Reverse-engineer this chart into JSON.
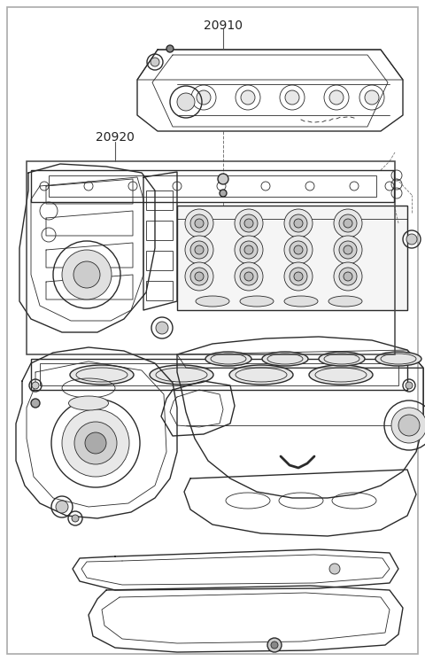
{
  "background_color": "#ffffff",
  "border_color": "#bbbbbb",
  "line_color": "#2a2a2a",
  "label_20910": "20910",
  "label_20920": "20920",
  "figsize": [
    4.8,
    7.46
  ],
  "dpi": 100,
  "xmin": 0,
  "xmax": 480,
  "ymin": 0,
  "ymax": 746
}
